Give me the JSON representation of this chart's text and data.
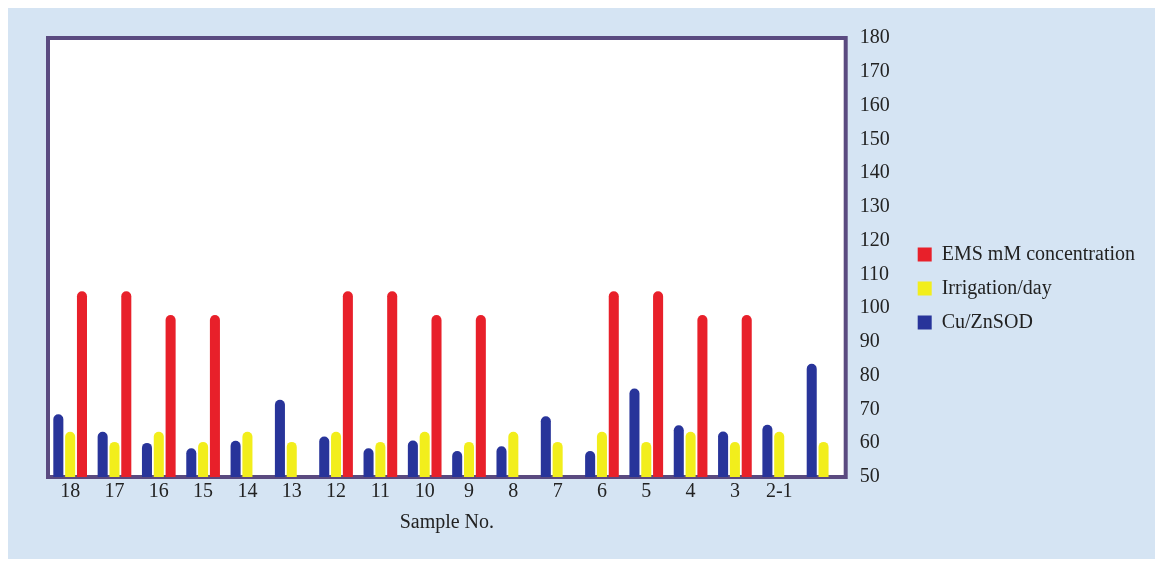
{
  "chart_data": {
    "type": "bar",
    "xlabel": "Sample No.",
    "categories": [
      "18",
      "17",
      "16",
      "15",
      "14",
      "13",
      "12",
      "11",
      "10",
      "9",
      "8",
      "7",
      "6",
      "5",
      "4",
      "3",
      "2-1",
      null
    ],
    "series": [
      {
        "name": "Cu/ZnSOD",
        "color": "#28349a",
        "values": [
          68.6,
          63.4,
          60.1,
          58.5,
          60.7,
          72.9,
          62,
          58.5,
          60.8,
          57.7,
          59.1,
          68,
          57.7,
          76.2,
          65.3,
          63.5,
          65.5,
          83.5
        ]
      },
      {
        "name": "Irrigation/day",
        "color": "#f2ee1c",
        "values": [
          63.4,
          60.4,
          63.4,
          60.4,
          63.4,
          60.4,
          63.4,
          60.4,
          63.4,
          60.4,
          63.4,
          60.4,
          63.4,
          60.4,
          63.4,
          60.4,
          63.4,
          60.4
        ]
      },
      {
        "name": "EMS mM concentration",
        "color": "#e8202a",
        "values": [
          105,
          105,
          98,
          98,
          null,
          null,
          105,
          105,
          98,
          98,
          null,
          null,
          105,
          105,
          98,
          98,
          null,
          null
        ]
      }
    ],
    "ylim": [
      50,
      180
    ],
    "yticks": [
      50,
      60,
      70,
      80,
      90,
      100,
      110,
      120,
      130,
      140,
      150,
      160,
      170,
      180
    ],
    "grid": false,
    "legend": "right"
  }
}
